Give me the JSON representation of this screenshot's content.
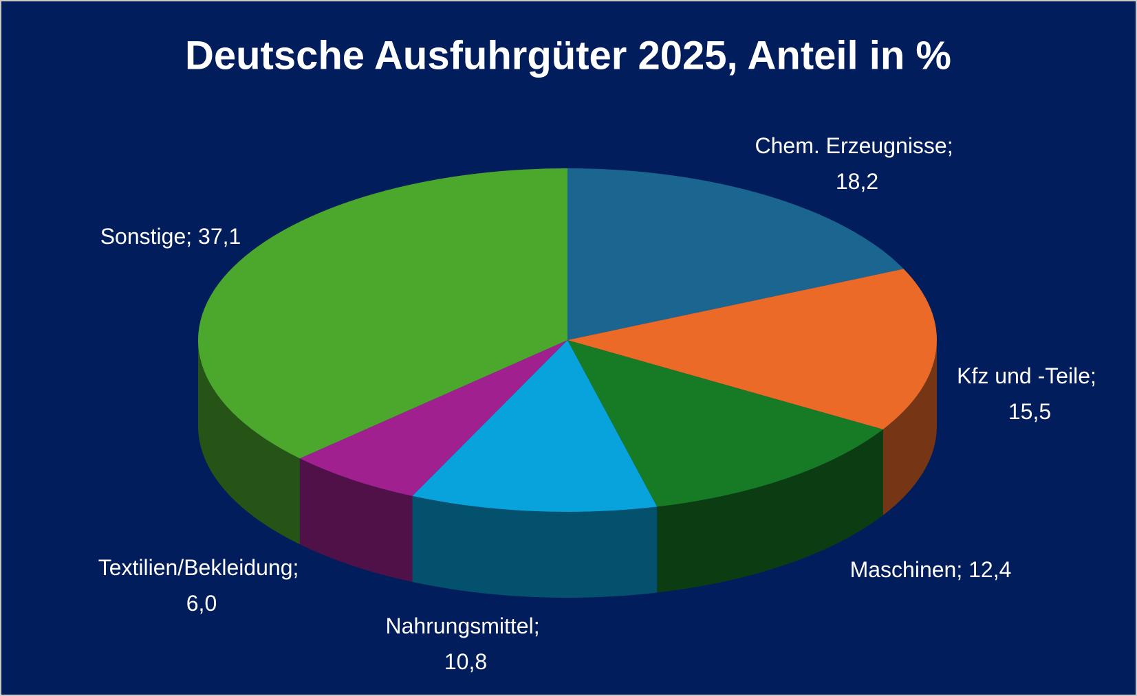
{
  "chart_data": {
    "type": "pie3d",
    "title": "Deutsche Ausfuhrgüter 2025, Anteil in %",
    "categories": [
      "Chem. Erzeugnisse",
      "Kfz und -Teile",
      "Maschinen",
      "Nahrungsmittel",
      "Textilien/Bekleidung",
      "Sonstige"
    ],
    "values": [
      18.2,
      15.5,
      12.4,
      10.8,
      6.0,
      37.1
    ],
    "value_labels": [
      "18,2",
      "15,5",
      "12,4",
      "10,8",
      "6,0",
      "37,1"
    ],
    "label_separator": "; ",
    "colors": [
      "#1a6690",
      "#ec6a28",
      "#177a24",
      "#08a2dc",
      "#a0208f",
      "#4ca82c"
    ]
  }
}
